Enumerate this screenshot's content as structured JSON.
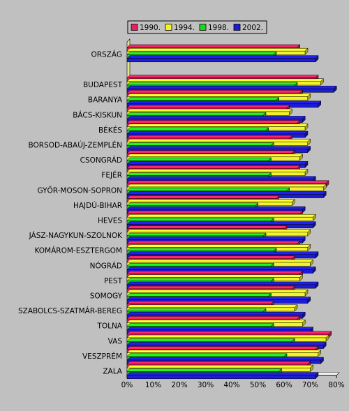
{
  "chart_data": {
    "type": "bar",
    "orientation": "horizontal",
    "style": "3d",
    "title": "",
    "xlabel": "",
    "ylabel": "",
    "xlim": [
      0,
      80
    ],
    "x_tick_labels": [
      "0%",
      "10%",
      "20%",
      "30%",
      "40%",
      "50%",
      "60%",
      "70%",
      "80%"
    ],
    "grid": false,
    "legend_position": "top",
    "categories": [
      "ORSZÁG",
      "BUDAPEST",
      "BARANYA",
      "BÁCS-KISKUN",
      "BÉKÉS",
      "BORSOD-ABAÚJ-ZEMPLÉN",
      "CSONGRÁD",
      "FEJÉR",
      "GYŐR-MOSON-SOPRON",
      "HAJDÚ-BIHAR",
      "HEVES",
      "JÁSZ-NAGYKUN-SZOLNOK",
      "KOMÁROM-ESZTERGOM",
      "NÓGRÁD",
      "PEST",
      "SOMOGY",
      "SZABOLCS-SZATMÁR-BEREG",
      "TOLNA",
      "VAS",
      "VESZPRÉM",
      "ZALA"
    ],
    "series": [
      {
        "name": "1990.",
        "color": "#e8215f",
        "values": [
          65,
          72,
          66,
          61,
          65,
          62,
          63,
          65,
          76,
          57,
          66,
          60,
          65,
          63,
          66,
          63,
          55,
          65,
          77,
          72,
          69
        ]
      },
      {
        "name": "1994.",
        "color": "#f3f32a",
        "values": [
          68,
          74,
          69,
          62,
          68,
          69,
          66,
          68,
          75,
          63,
          71,
          69,
          69,
          70,
          66,
          68,
          64,
          67,
          76,
          73,
          70
        ]
      },
      {
        "name": "1998.",
        "color": "#1fd61f",
        "values": [
          56,
          64,
          57,
          52,
          53,
          55,
          54,
          54,
          61,
          49,
          55,
          52,
          56,
          55,
          55,
          54,
          52,
          55,
          63,
          60,
          58
        ]
      },
      {
        "name": "2002.",
        "color": "#1c1cd2",
        "values": [
          72,
          79,
          73,
          67,
          68,
          69,
          68,
          71,
          75,
          67,
          71,
          67,
          72,
          71,
          72,
          69,
          67,
          70,
          75,
          74,
          72
        ]
      }
    ]
  }
}
